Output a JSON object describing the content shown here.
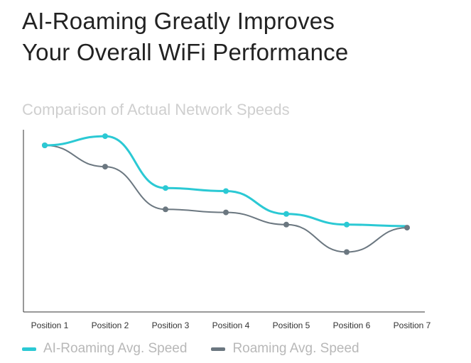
{
  "header": {
    "title_line1": "AI-Roaming Greatly Improves",
    "title_line2": "Your Overall WiFi Performance"
  },
  "chart_data": {
    "type": "line",
    "title": "Comparison of Actual Network Speeds",
    "categories": [
      "Position 1",
      "Position 2",
      "Position 3",
      "Position 4",
      "Position 5",
      "Position 6",
      "Position 7"
    ],
    "ylim": [
      0,
      100
    ],
    "grid": false,
    "legend_position": "bottom-left",
    "series": [
      {
        "name": "AI-Roaming Avg. Speed",
        "color": "#2bc9d4",
        "values": [
          100,
          106,
          72,
          70,
          55,
          48,
          47
        ]
      },
      {
        "name": "Roaming Avg. Speed",
        "color": "#6b7780",
        "values": [
          100,
          86,
          58,
          56,
          48,
          30,
          46
        ]
      }
    ]
  }
}
